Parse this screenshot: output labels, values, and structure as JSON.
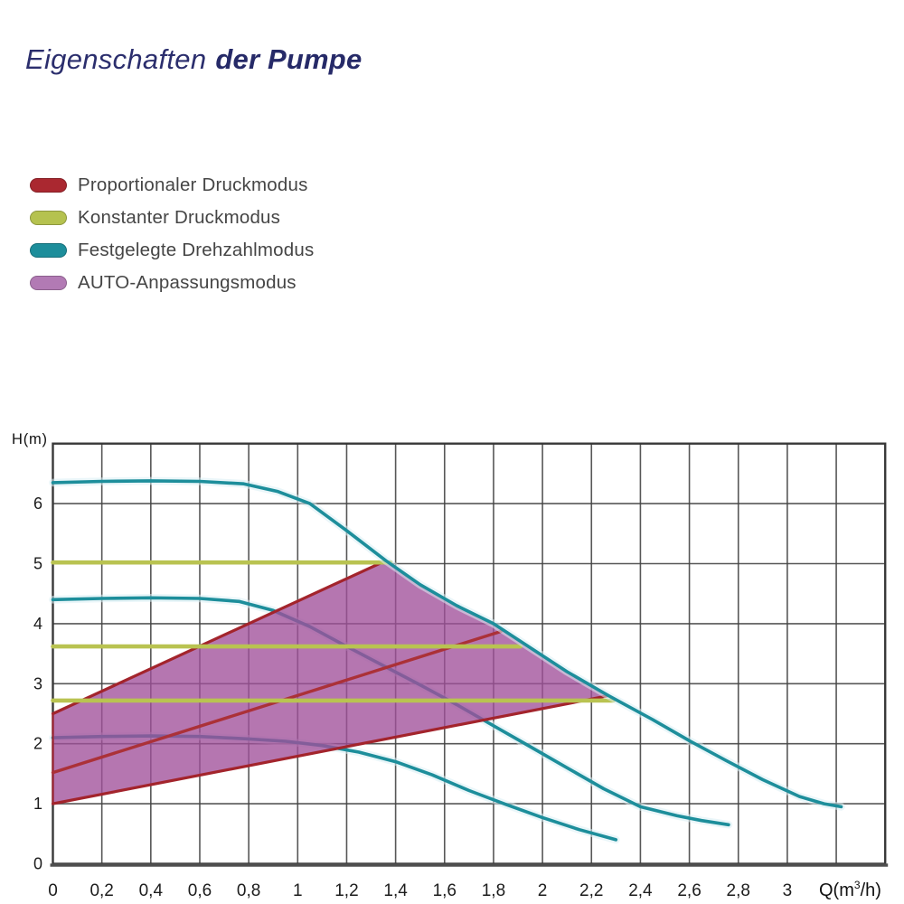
{
  "title": {
    "prefix": "Eigenschaften",
    "emphasis": "der Pumpe"
  },
  "legend": {
    "items": [
      {
        "name": "proportional-pressure-mode",
        "label": "Proportionaler Druckmodus",
        "color": "#aa2830"
      },
      {
        "name": "constant-pressure-mode",
        "label": "Konstanter Druckmodus",
        "color": "#b5c24f"
      },
      {
        "name": "fixed-speed-mode",
        "label": "Festgelegte Drehzahlmodus",
        "color": "#1d8e9b"
      },
      {
        "name": "auto-adapt-mode",
        "label": "AUTO-Anpassungsmodus",
        "color": "#b27ab4"
      }
    ]
  },
  "chart_data": {
    "type": "line",
    "title": "",
    "xlabel": "Q(m³/h)",
    "xlabel_parts": {
      "pre": "Q(m",
      "sup": "3",
      "post": "/h)"
    },
    "ylabel": "H(m)",
    "xlim": [
      0,
      3.4
    ],
    "ylim": [
      0,
      7
    ],
    "grid": {
      "x_step": 0.2,
      "y_step": 1,
      "color": "#454545"
    },
    "x_ticks": {
      "values": [
        0,
        0.2,
        0.4,
        0.6,
        0.8,
        1,
        1.2,
        1.4,
        1.6,
        1.8,
        2,
        2.2,
        2.4,
        2.6,
        2.8,
        3
      ],
      "labels": [
        "0",
        "0,2",
        "0,4",
        "0,6",
        "0,8",
        "1",
        "1,2",
        "1,4",
        "1,6",
        "1,8",
        "2",
        "2,2",
        "2,4",
        "2,6",
        "2,8",
        "3"
      ]
    },
    "y_ticks": {
      "values": [
        0,
        1,
        2,
        3,
        4,
        5,
        6
      ],
      "labels": [
        "0",
        "1",
        "2",
        "3",
        "4",
        "5",
        "6"
      ]
    },
    "series": [
      {
        "name": "fixed-speed-I",
        "mode": "Festgelegte Drehzahlmodus",
        "color": "#1d8e9b",
        "width": 3.6,
        "z": 1,
        "glow": true,
        "points": [
          [
            0,
            2.1
          ],
          [
            0.2,
            2.12
          ],
          [
            0.4,
            2.13
          ],
          [
            0.6,
            2.12
          ],
          [
            0.8,
            2.08
          ],
          [
            0.95,
            2.04
          ],
          [
            1.1,
            1.97
          ],
          [
            1.25,
            1.86
          ],
          [
            1.4,
            1.7
          ],
          [
            1.55,
            1.48
          ],
          [
            1.7,
            1.22
          ],
          [
            1.85,
            0.99
          ],
          [
            2.0,
            0.77
          ],
          [
            2.15,
            0.57
          ],
          [
            2.3,
            0.4
          ]
        ]
      },
      {
        "name": "fixed-speed-II",
        "mode": "Festgelegte Drehzahlmodus",
        "color": "#1d8e9b",
        "width": 3.6,
        "z": 1,
        "glow": true,
        "points": [
          [
            0,
            4.4
          ],
          [
            0.2,
            4.42
          ],
          [
            0.4,
            4.43
          ],
          [
            0.6,
            4.42
          ],
          [
            0.76,
            4.37
          ],
          [
            0.9,
            4.22
          ],
          [
            1.05,
            3.95
          ],
          [
            1.2,
            3.62
          ],
          [
            1.35,
            3.3
          ],
          [
            1.5,
            2.98
          ],
          [
            1.65,
            2.65
          ],
          [
            1.8,
            2.3
          ],
          [
            1.95,
            1.95
          ],
          [
            2.1,
            1.6
          ],
          [
            2.25,
            1.25
          ],
          [
            2.4,
            0.95
          ],
          [
            2.55,
            0.8
          ],
          [
            2.65,
            0.72
          ],
          [
            2.76,
            0.65
          ]
        ]
      },
      {
        "name": "proportional-min",
        "mode": "Proportionaler Druckmodus",
        "color": "#a3242c",
        "width": 3.2,
        "z": 2,
        "points": [
          [
            0,
            1.0
          ],
          [
            2.27,
            2.8
          ]
        ]
      },
      {
        "name": "proportional-mid",
        "mode": "Proportionaler Druckmodus",
        "color": "#ab3138",
        "width": 3.4,
        "z": 2,
        "points": [
          [
            0,
            1.52
          ],
          [
            1.83,
            3.87
          ]
        ]
      },
      {
        "name": "proportional-max",
        "mode": "Proportionaler Druckmodus",
        "color": "#a3242c",
        "width": 3.2,
        "z": 2,
        "points": [
          [
            0,
            2.5
          ],
          [
            1.36,
            5.05
          ]
        ]
      },
      {
        "name": "constant-pressure-high",
        "mode": "Konstanter Druckmodus",
        "color": "#b9c351",
        "width": 4.6,
        "z": 3,
        "points": [
          [
            0,
            5.02
          ],
          [
            1.38,
            5.02
          ]
        ]
      },
      {
        "name": "constant-pressure-mid",
        "mode": "Konstanter Druckmodus",
        "color": "#b9c351",
        "width": 4.6,
        "z": 3,
        "points": [
          [
            0,
            3.62
          ],
          [
            1.91,
            3.62
          ]
        ]
      },
      {
        "name": "constant-pressure-low",
        "mode": "Konstanter Druckmodus",
        "color": "#b9c351",
        "width": 4.6,
        "z": 3,
        "points": [
          [
            0,
            2.72
          ],
          [
            2.29,
            2.72
          ]
        ]
      },
      {
        "name": "fixed-speed-III",
        "mode": "Festgelegte Drehzahlmodus",
        "color": "#1d8e9b",
        "width": 3.6,
        "z": 4,
        "glow": true,
        "points": [
          [
            0,
            6.35
          ],
          [
            0.2,
            6.37
          ],
          [
            0.4,
            6.38
          ],
          [
            0.6,
            6.37
          ],
          [
            0.78,
            6.33
          ],
          [
            0.92,
            6.2
          ],
          [
            1.05,
            6.0
          ],
          [
            1.2,
            5.55
          ],
          [
            1.36,
            5.05
          ],
          [
            1.5,
            4.65
          ],
          [
            1.65,
            4.3
          ],
          [
            1.8,
            4.0
          ],
          [
            1.95,
            3.6
          ],
          [
            2.1,
            3.2
          ],
          [
            2.27,
            2.8
          ],
          [
            2.45,
            2.4
          ],
          [
            2.6,
            2.05
          ],
          [
            2.75,
            1.72
          ],
          [
            2.9,
            1.4
          ],
          [
            3.05,
            1.12
          ],
          [
            3.15,
            1.0
          ],
          [
            3.22,
            0.95
          ]
        ]
      }
    ],
    "region": {
      "name": "auto-adapt-region",
      "mode": "AUTO-Anpassungsmodus",
      "fill": "#a04f9a",
      "opacity": 0.78,
      "border": "#9c2430",
      "points": [
        [
          0,
          1.0
        ],
        [
          0,
          2.5
        ],
        [
          1.36,
          5.05
        ],
        [
          1.5,
          4.65
        ],
        [
          1.65,
          4.3
        ],
        [
          1.8,
          4.0
        ],
        [
          1.95,
          3.6
        ],
        [
          2.1,
          3.2
        ],
        [
          2.27,
          2.8
        ]
      ]
    }
  }
}
